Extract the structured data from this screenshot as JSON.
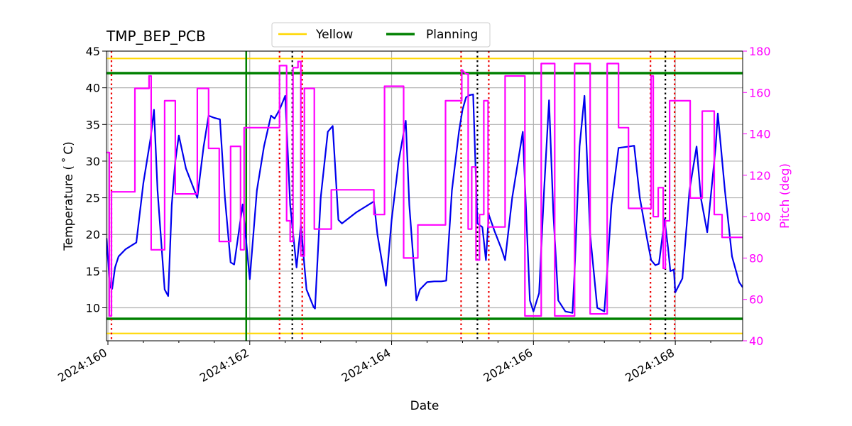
{
  "chart_data": {
    "type": "line",
    "title": "TMP_BEP_PCB",
    "xlabel": "Date",
    "ylabel_left": "Temperature ($^\\circ$C)",
    "ylabel_left_display": "Temperature ( ˚ C)",
    "ylabel_right": "Pitch (deg)",
    "xlim": [
      159.98,
      168.95
    ],
    "ylim_left": [
      5.5,
      45
    ],
    "ylim_right": [
      40,
      180
    ],
    "x_ticks": [
      160,
      162,
      164,
      166,
      168
    ],
    "x_tick_labels": [
      "2024:160",
      "2024:162",
      "2024:164",
      "2024:166",
      "2024:168"
    ],
    "y_left_ticks": [
      10,
      15,
      20,
      25,
      30,
      35,
      40,
      45
    ],
    "y_left_tick_labels": [
      "10",
      "15",
      "20",
      "25",
      "30",
      "35",
      "40",
      "45"
    ],
    "y_right_ticks": [
      40,
      60,
      80,
      100,
      120,
      140,
      160,
      180
    ],
    "y_right_tick_labels": [
      "40",
      "60",
      "80",
      "100",
      "120",
      "140",
      "160",
      "180"
    ],
    "grid": true,
    "legend": {
      "placement": "top-center",
      "entries": [
        {
          "name": "Yellow",
          "color": "#ffd700"
        },
        {
          "name": "Planning",
          "color": "#008000"
        }
      ]
    },
    "colors": {
      "temperature": "#0000ee",
      "pitch": "#ff00ff",
      "pitch_axis": "#ff00ff",
      "yellow": "#ffd700",
      "planning": "#008000",
      "red_marker": "#ee0000",
      "black_marker": "#000000",
      "grid": "#b0b0b0"
    },
    "limits": {
      "yellow": [
        6.5,
        44
      ],
      "planning": [
        8.5,
        42
      ]
    },
    "vertical_markers": {
      "planning_line": [
        161.95
      ],
      "red": [
        160.05,
        162.42,
        162.74,
        164.98,
        165.37,
        167.65,
        167.99
      ],
      "black": [
        162.6,
        165.21,
        167.86
      ]
    },
    "series": [
      {
        "name": "TMP_BEP_PCB",
        "axis": "left",
        "x": [
          159.98,
          160.03,
          160.06,
          160.1,
          160.15,
          160.25,
          160.4,
          160.5,
          160.6,
          160.65,
          160.7,
          160.8,
          160.85,
          160.9,
          160.95,
          161.0,
          161.1,
          161.2,
          161.26,
          161.35,
          161.42,
          161.5,
          161.58,
          161.65,
          161.73,
          161.78,
          161.9,
          161.95,
          162.0,
          162.1,
          162.2,
          162.3,
          162.35,
          162.42,
          162.5,
          162.57,
          162.66,
          162.72,
          162.8,
          162.9,
          162.92,
          163.0,
          163.1,
          163.17,
          163.25,
          163.3,
          163.5,
          163.7,
          163.75,
          163.8,
          163.92,
          164.0,
          164.1,
          164.2,
          164.25,
          164.35,
          164.4,
          164.5,
          164.6,
          164.7,
          164.77,
          164.85,
          164.95,
          165.0,
          165.05,
          165.1,
          165.15,
          165.21,
          165.28,
          165.33,
          165.37,
          165.45,
          165.55,
          165.6,
          165.7,
          165.85,
          165.95,
          166.0,
          166.08,
          166.15,
          166.22,
          166.28,
          166.35,
          166.45,
          166.55,
          166.58,
          166.65,
          166.72,
          166.8,
          166.9,
          167.0,
          167.04,
          167.1,
          167.2,
          167.35,
          167.42,
          167.5,
          167.6,
          167.66,
          167.72,
          167.77,
          167.85,
          167.9,
          167.93,
          167.98,
          168.0,
          168.1,
          168.2,
          168.3,
          168.36,
          168.45,
          168.57,
          168.6,
          168.7,
          168.8,
          168.9,
          168.95
        ],
        "y": [
          19.5,
          12.8,
          12.6,
          15.5,
          17.0,
          18.0,
          18.9,
          27.0,
          33.0,
          37.0,
          26.0,
          12.5,
          11.6,
          24.0,
          30.0,
          33.5,
          29.0,
          26.5,
          25.0,
          32.0,
          36.2,
          35.9,
          35.7,
          25.0,
          16.2,
          15.9,
          24.1,
          19.0,
          13.9,
          26.0,
          32.0,
          36.2,
          35.8,
          37.0,
          38.9,
          24.0,
          15.5,
          21.3,
          12.5,
          10.1,
          9.9,
          25.0,
          34.0,
          34.8,
          22.0,
          21.5,
          23.0,
          24.2,
          24.5,
          20.0,
          13.0,
          22.0,
          30.0,
          35.5,
          24.0,
          11.0,
          12.5,
          13.5,
          13.6,
          13.6,
          13.7,
          26.0,
          34.0,
          37.0,
          38.7,
          39.0,
          39.1,
          21.5,
          21.0,
          16.5,
          22.7,
          20.5,
          18.0,
          16.5,
          25.0,
          34.0,
          11.0,
          9.5,
          12.0,
          26.0,
          38.3,
          23.0,
          11.0,
          9.5,
          9.3,
          15.0,
          32.0,
          38.9,
          20.0,
          10.0,
          9.5,
          15.0,
          24.0,
          31.8,
          32.0,
          32.1,
          25.0,
          19.5,
          16.5,
          15.8,
          16.0,
          22.1,
          18.0,
          15.0,
          15.2,
          12.1,
          14.0,
          26.0,
          32.0,
          25.0,
          20.3,
          32.0,
          36.5,
          26.0,
          17.0,
          13.5,
          12.8
        ]
      },
      {
        "name": "Pitch",
        "axis": "right",
        "x": [
          159.98,
          160.02,
          160.02,
          160.05,
          160.05,
          160.38,
          160.38,
          160.55,
          160.58,
          160.58,
          160.61,
          160.61,
          160.8,
          160.8,
          160.95,
          160.95,
          161.26,
          161.26,
          161.42,
          161.42,
          161.57,
          161.57,
          161.73,
          161.73,
          161.87,
          161.87,
          161.92,
          161.92,
          162.37,
          162.42,
          162.42,
          162.52,
          162.52,
          162.57,
          162.57,
          162.61,
          162.61,
          162.68,
          162.68,
          162.72,
          162.72,
          162.77,
          162.77,
          162.91,
          162.91,
          163.15,
          163.15,
          163.25,
          163.25,
          163.75,
          163.75,
          163.9,
          163.9,
          164.17,
          164.17,
          164.37,
          164.37,
          164.76,
          164.76,
          164.99,
          164.99,
          165.05,
          165.08,
          165.08,
          165.13,
          165.13,
          165.19,
          165.19,
          165.24,
          165.24,
          165.3,
          165.3,
          165.36,
          165.36,
          165.6,
          165.6,
          165.88,
          165.88,
          166.11,
          166.11,
          166.3,
          166.3,
          166.58,
          166.58,
          166.8,
          166.8,
          167.04,
          167.04,
          167.2,
          167.2,
          167.34,
          167.34,
          167.66,
          167.66,
          167.69,
          167.69,
          167.76,
          167.76,
          167.83,
          167.83,
          167.86,
          167.86,
          167.92,
          167.92,
          167.99,
          167.99,
          168.21,
          168.21,
          168.38,
          168.38,
          168.55,
          168.55,
          168.66,
          168.66,
          168.9,
          168.95
        ],
        "y": [
          131,
          131,
          52,
          52,
          112,
          112,
          162,
          162,
          162,
          168,
          168,
          84,
          84,
          156,
          156,
          111,
          111,
          162,
          162,
          133,
          133,
          88,
          88,
          134,
          134,
          84,
          84,
          143,
          143,
          143,
          173,
          173,
          98,
          98,
          88,
          88,
          172,
          172,
          175,
          175,
          81,
          81,
          162,
          162,
          94,
          94,
          113,
          113,
          113,
          113,
          101,
          101,
          163,
          163,
          80,
          80,
          96,
          96,
          156,
          156,
          171,
          169,
          169,
          94,
          94,
          124,
          124,
          79,
          79,
          101,
          101,
          156,
          156,
          95,
          95,
          168,
          168,
          52,
          52,
          174,
          174,
          52,
          52,
          174,
          174,
          53,
          53,
          174,
          174,
          143,
          143,
          104,
          104,
          168,
          168,
          100,
          100,
          114,
          114,
          75,
          75,
          98,
          98,
          156,
          156,
          156,
          156,
          109,
          109,
          151,
          151,
          101,
          101,
          90,
          90,
          90
        ]
      }
    ]
  }
}
